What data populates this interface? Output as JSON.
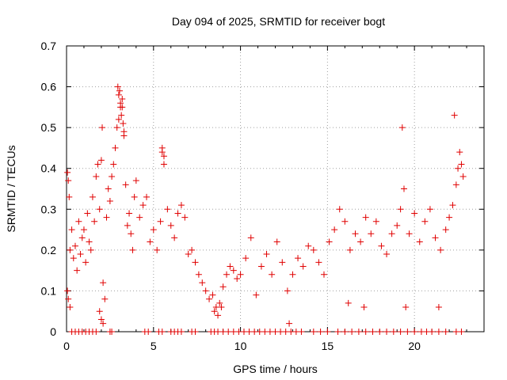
{
  "chart_data": {
    "type": "scatter",
    "title": "Day 094 of 2025, SRMTID for receiver bogt",
    "xlabel": "GPS time / hours",
    "ylabel": "SRMTID / TECUs",
    "xlim": [
      0,
      24
    ],
    "ylim": [
      0,
      0.7
    ],
    "x_ticks": [
      0,
      5,
      10,
      15,
      20
    ],
    "x_tick_labels": [
      "0",
      "5",
      "10",
      "15",
      "20"
    ],
    "y_ticks": [
      0,
      0.1,
      0.2,
      0.3,
      0.4,
      0.5,
      0.6,
      0.7
    ],
    "y_tick_labels": [
      "0",
      "0.1",
      "0.2",
      "0.3",
      "0.4",
      "0.5",
      "0.6",
      "0.7"
    ],
    "grid": true,
    "marker": "+",
    "series": [
      {
        "name": "SRMTID",
        "color": "#e00000",
        "x": [
          0.05,
          0.1,
          0.15,
          0.2,
          0.3,
          0.4,
          0.5,
          0.6,
          0.7,
          0.8,
          0.9,
          1.0,
          1.1,
          1.2,
          1.3,
          1.4,
          1.5,
          1.6,
          1.7,
          1.8,
          1.9,
          2.0,
          2.05,
          2.1,
          2.2,
          2.3,
          2.4,
          2.5,
          2.6,
          2.7,
          2.8,
          2.9,
          3.0,
          3.1,
          3.2,
          3.3,
          3.4,
          3.5,
          3.6,
          3.7,
          3.8,
          3.9,
          4.0,
          4.2,
          4.4,
          4.6,
          4.8,
          5.0,
          5.2,
          5.4,
          5.5,
          5.6,
          5.8,
          6.0,
          6.2,
          6.4,
          6.6,
          6.8,
          7.0,
          7.2,
          7.4,
          7.6,
          7.8,
          8.0,
          8.2,
          8.4,
          8.6,
          8.8,
          9.0,
          9.2,
          9.4,
          9.6,
          9.8,
          10.0,
          10.3,
          10.6,
          10.9,
          11.2,
          11.5,
          11.8,
          12.1,
          12.4,
          12.7,
          13.0,
          13.3,
          13.6,
          13.9,
          14.2,
          14.5,
          14.8,
          15.1,
          15.4,
          15.7,
          16.0,
          16.3,
          16.6,
          16.9,
          17.2,
          17.5,
          17.8,
          18.1,
          18.4,
          18.7,
          19.0,
          19.2,
          19.4,
          19.7,
          20.0,
          20.3,
          20.6,
          20.9,
          21.2,
          21.5,
          21.8,
          22.0,
          22.2,
          22.4,
          22.5,
          22.6,
          22.7,
          22.8,
          2.95,
          3.0,
          3.05,
          3.1,
          3.15,
          3.2,
          3.25,
          3.3,
          5.5,
          5.6,
          19.3,
          22.3,
          0.05,
          0.1,
          0.2,
          1.9,
          2.0,
          2.1,
          8.5,
          8.7,
          8.9,
          12.8,
          16.2,
          17.1,
          19.5,
          21.4
        ],
        "y": [
          0.39,
          0.37,
          0.33,
          0.2,
          0.25,
          0.18,
          0.21,
          0.15,
          0.27,
          0.19,
          0.23,
          0.25,
          0.17,
          0.29,
          0.22,
          0.2,
          0.33,
          0.27,
          0.38,
          0.41,
          0.3,
          0.42,
          0.5,
          0.12,
          0.08,
          0.28,
          0.35,
          0.32,
          0.38,
          0.41,
          0.45,
          0.5,
          0.52,
          0.55,
          0.57,
          0.48,
          0.36,
          0.26,
          0.29,
          0.24,
          0.2,
          0.33,
          0.37,
          0.28,
          0.31,
          0.33,
          0.22,
          0.25,
          0.2,
          0.27,
          0.44,
          0.41,
          0.3,
          0.26,
          0.23,
          0.29,
          0.31,
          0.28,
          0.19,
          0.2,
          0.17,
          0.14,
          0.12,
          0.1,
          0.08,
          0.09,
          0.06,
          0.07,
          0.11,
          0.14,
          0.16,
          0.15,
          0.13,
          0.14,
          0.18,
          0.23,
          0.09,
          0.16,
          0.19,
          0.14,
          0.22,
          0.17,
          0.1,
          0.14,
          0.18,
          0.16,
          0.21,
          0.2,
          0.17,
          0.14,
          0.22,
          0.25,
          0.3,
          0.27,
          0.2,
          0.24,
          0.22,
          0.28,
          0.24,
          0.27,
          0.21,
          0.19,
          0.24,
          0.26,
          0.3,
          0.35,
          0.24,
          0.29,
          0.22,
          0.27,
          0.3,
          0.23,
          0.2,
          0.25,
          0.28,
          0.31,
          0.36,
          0.4,
          0.44,
          0.41,
          0.38,
          0.6,
          0.58,
          0.59,
          0.56,
          0.53,
          0.55,
          0.51,
          0.49,
          0.45,
          0.43,
          0.5,
          0.53,
          0.1,
          0.08,
          0.06,
          0.05,
          0.03,
          0.02,
          0.05,
          0.04,
          0.06,
          0.02,
          0.07,
          0.06,
          0.06,
          0.06
        ],
        "zero_x": [
          0.3,
          0.5,
          0.7,
          0.9,
          1.1,
          1.3,
          1.5,
          1.7,
          2.5,
          2.6,
          4.5,
          4.7,
          5.3,
          5.5,
          6.0,
          6.2,
          6.4,
          6.6,
          7.2,
          7.4,
          8.3,
          8.5,
          8.7,
          9.0,
          9.3,
          9.6,
          9.9,
          10.2,
          10.5,
          10.8,
          11.1,
          11.4,
          11.7,
          12.0,
          12.3,
          12.6,
          12.9,
          13.2,
          13.5,
          14.2,
          14.6,
          15.0,
          15.6,
          16.0,
          16.4,
          16.8,
          17.2,
          17.6,
          18.0,
          18.4,
          18.8,
          19.2,
          19.6,
          20.0,
          20.4,
          20.7,
          21.0,
          21.4,
          21.8,
          22.4,
          22.7
        ]
      }
    ]
  }
}
